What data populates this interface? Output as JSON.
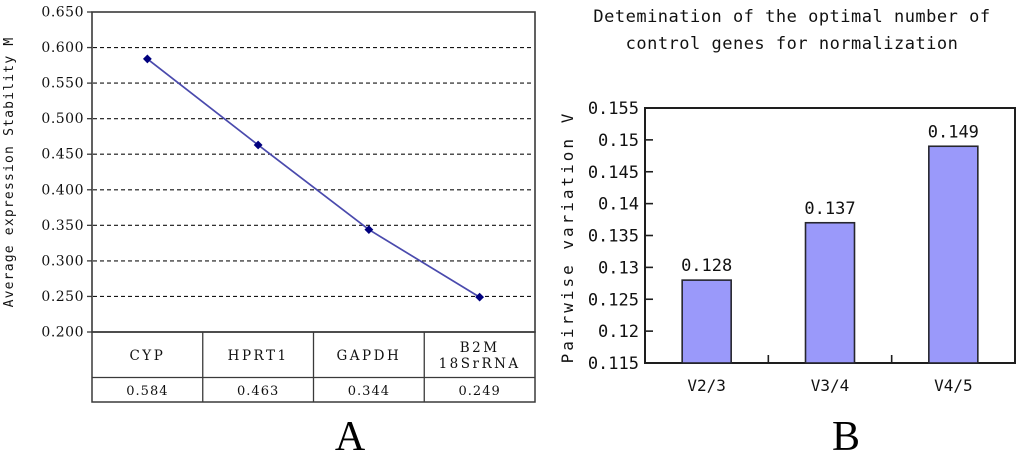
{
  "figure": {
    "background": "#ffffff",
    "panel_labels": {
      "a": "A",
      "b": "B"
    }
  },
  "chart_data": [
    {
      "type": "line",
      "panel": "A",
      "ylabel": "Average expression Stability M",
      "categories": [
        "CYP",
        "HPRT1",
        "GAPDH",
        "B2M 18SrRNA"
      ],
      "category_lines": [
        [
          "CYP"
        ],
        [
          "HPRT1"
        ],
        [
          "GAPDH"
        ],
        [
          "B2M",
          "18SrRNA"
        ]
      ],
      "values": [
        0.584,
        0.463,
        0.344,
        0.249
      ],
      "value_labels": [
        "0.584",
        "0.463",
        "0.344",
        "0.249"
      ],
      "yticks": [
        "0.650",
        "0.600",
        "0.550",
        "0.500",
        "0.450",
        "0.400",
        "0.350",
        "0.300",
        "0.250",
        "0.200"
      ],
      "ylim": [
        0.2,
        0.65
      ],
      "grid": "horizontal-dashed",
      "legend": "none",
      "data_table_shown": true,
      "colors": {
        "line": "#4a4aad",
        "marker": "#00007e",
        "axis": "#3a3a3a",
        "grid": "#151515",
        "plot_background": "#ffffff"
      }
    },
    {
      "type": "bar",
      "panel": "B",
      "title": "Detemination of the optimal number of control genes for normalization",
      "title_lines": [
        "Detemination of the optimal number of",
        "control genes for normalization"
      ],
      "ylabel": "Pairwise variation V",
      "categories": [
        "V2/3",
        "V3/4",
        "V4/5"
      ],
      "values": [
        0.128,
        0.137,
        0.149
      ],
      "value_labels": [
        "0.128",
        "0.137",
        "0.149"
      ],
      "yticks": [
        "0.155",
        "0.15",
        "0.145",
        "0.14",
        "0.135",
        "0.13",
        "0.125",
        "0.12",
        "0.115"
      ],
      "ylim": [
        0.115,
        0.155
      ],
      "grid": "off",
      "legend": "none",
      "colors": {
        "bar_fill": "#9a99fa",
        "bar_border": "#26262e",
        "axis": "#1e1e1e",
        "plot_background": "#ffffff"
      }
    }
  ]
}
